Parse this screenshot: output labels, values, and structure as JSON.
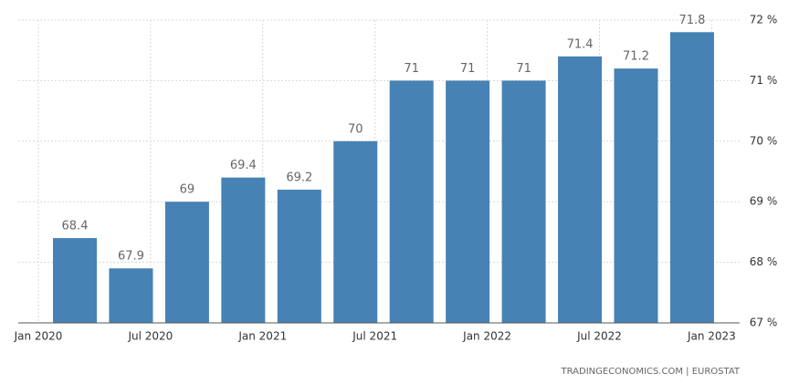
{
  "chart_data": {
    "type": "bar",
    "categories": [
      null,
      null,
      null,
      null,
      null,
      null,
      null,
      null,
      null,
      null,
      null,
      null
    ],
    "values": [
      68.4,
      67.9,
      69,
      69.4,
      69.2,
      70,
      71,
      71,
      71,
      71.4,
      71.2,
      71.8
    ],
    "color": "#4682b4",
    "xtick_labels": [
      "Jan 2020",
      "Jul 2020",
      "Jan 2021",
      "Jul 2021",
      "Jan 2022",
      "Jul 2022",
      "Jan 2023"
    ],
    "ylim": [
      67,
      72
    ],
    "yticks": [
      {
        "value": 67,
        "label": "67 %"
      },
      {
        "value": 68,
        "label": "68 %"
      },
      {
        "value": 69,
        "label": "69 %"
      },
      {
        "value": 70,
        "label": "70 %"
      },
      {
        "value": 71,
        "label": "71 %"
      },
      {
        "value": 72,
        "label": "72 %"
      }
    ],
    "grid": true,
    "source": "TRADINGECONOMICS.COM | EUROSTAT"
  }
}
